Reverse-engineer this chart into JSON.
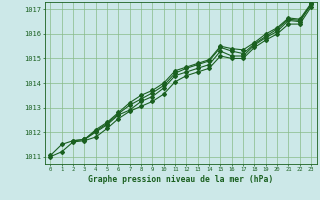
{
  "xlabel": "Graphe pression niveau de la mer (hPa)",
  "xlim": [
    -0.5,
    23.5
  ],
  "ylim": [
    1010.7,
    1017.3
  ],
  "yticks": [
    1011,
    1012,
    1013,
    1014,
    1015,
    1016,
    1017
  ],
  "xticks": [
    0,
    1,
    2,
    3,
    4,
    5,
    6,
    7,
    8,
    9,
    10,
    11,
    12,
    13,
    14,
    15,
    16,
    17,
    18,
    19,
    20,
    21,
    22,
    23
  ],
  "background_color": "#cce8e8",
  "grid_color": "#88bb88",
  "line_color": "#1a6020",
  "line1_x": [
    0,
    1,
    2,
    3,
    4,
    5,
    6,
    7,
    8,
    9,
    10,
    11,
    12,
    13,
    14,
    15,
    16,
    17,
    18,
    19,
    20,
    21,
    22,
    23
  ],
  "line1": [
    1011.0,
    1011.2,
    1011.6,
    1011.65,
    1011.8,
    1012.15,
    1012.55,
    1012.85,
    1013.05,
    1013.25,
    1013.55,
    1014.05,
    1014.3,
    1014.45,
    1014.6,
    1015.1,
    1015.0,
    1015.0,
    1015.45,
    1015.75,
    1016.0,
    1016.4,
    1016.4,
    1017.1
  ],
  "line2_x": [
    0,
    1,
    2,
    3,
    4,
    5,
    6,
    7,
    8,
    9,
    10,
    11,
    12,
    13,
    14,
    15,
    16,
    17,
    18,
    19,
    20,
    21,
    22,
    23
  ],
  "line2": [
    1011.05,
    1011.5,
    1011.65,
    1011.7,
    1012.0,
    1012.3,
    1012.7,
    1012.9,
    1013.25,
    1013.45,
    1013.8,
    1014.3,
    1014.45,
    1014.6,
    1014.75,
    1015.3,
    1015.1,
    1015.1,
    1015.55,
    1015.85,
    1016.1,
    1016.55,
    1016.5,
    1017.2
  ],
  "line3_x": [
    2,
    3,
    4,
    5,
    6,
    7,
    8,
    9,
    10,
    11,
    12,
    13,
    14,
    15,
    16,
    17,
    18,
    19,
    20,
    21,
    22,
    23
  ],
  "line3": [
    1011.65,
    1011.7,
    1012.05,
    1012.35,
    1012.75,
    1013.1,
    1013.35,
    1013.6,
    1013.9,
    1014.4,
    1014.6,
    1014.75,
    1014.9,
    1015.45,
    1015.3,
    1015.2,
    1015.6,
    1015.9,
    1016.2,
    1016.6,
    1016.55,
    1017.2
  ],
  "line4_x": [
    3,
    4,
    5,
    6,
    7,
    8,
    9,
    10,
    11,
    12,
    13,
    14,
    15,
    16,
    17,
    18,
    19,
    20,
    21,
    22,
    23
  ],
  "line4": [
    1011.7,
    1012.1,
    1012.4,
    1012.8,
    1013.2,
    1013.5,
    1013.7,
    1014.0,
    1014.5,
    1014.65,
    1014.8,
    1014.95,
    1015.5,
    1015.4,
    1015.35,
    1015.65,
    1016.0,
    1016.25,
    1016.65,
    1016.6,
    1017.25
  ]
}
